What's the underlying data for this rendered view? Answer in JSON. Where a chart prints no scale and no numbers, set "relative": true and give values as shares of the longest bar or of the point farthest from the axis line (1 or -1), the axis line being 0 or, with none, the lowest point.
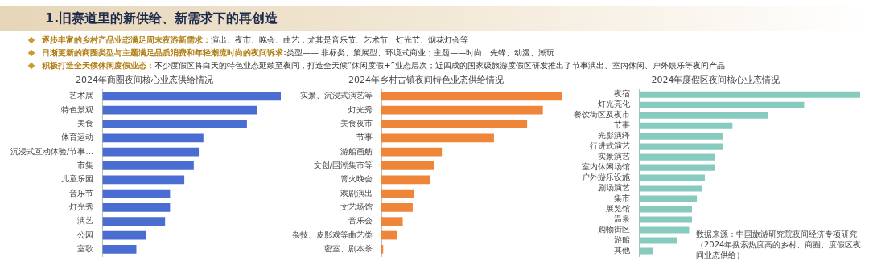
{
  "chart_data": [
    {
      "type": "other",
      "title": "1.旧赛道里的新供给、新需求下的再创造",
      "annotations": [
        "逐步丰富的乡村产品业态满足周末夜游新需求：",
        "演出、夜市、晚会、曲艺，尤其是音乐节、艺术节、灯光节、烟花灯会等",
        "日渐更新的商圈类型与主题满足品质消费和年轻潮流时尚的夜间诉求:",
        "类型—— 非标类、策展型、环境式商业；主题——时尚、先锋、动漫、潮玩",
        "积极打造全天候休闲度假业态：",
        "不少度假区将白天的特色业态延续至夜间，打造全天候“休闲度假+”业态层次；近四成的国家级旅游度假区研发推出了节事演出、室内休闲、户外娱乐等夜间产品"
      ]
    },
    {
      "type": "bar",
      "orientation": "horizontal",
      "relative": true,
      "title": "2024年商圈夜间核心业态供给情况",
      "color": "#4a6dd2",
      "categories": [
        "艺术展",
        "特色景观",
        "美食",
        "体育运动",
        "沉浸式互动体验/节事…",
        "市集",
        "儿童乐园",
        "音乐节",
        "灯光秀",
        "演艺",
        "公园",
        "室歌"
      ],
      "values": [
        1,
        0.865,
        0.81,
        0.566,
        0.54,
        0.512,
        0.459,
        0.379,
        0.379,
        0.351,
        0.244,
        0.19
      ]
    },
    {
      "type": "bar",
      "orientation": "horizontal",
      "relative": true,
      "title": "2024年乡村古镇夜间特色业态供给情况",
      "color": "#ef8539",
      "categories": [
        "实景、沉浸式演艺等",
        "灯光秀",
        "美食夜市",
        "节事",
        "游船画舫",
        "文创/国潮集市等",
        "篝火晚会",
        "戏剧演出",
        "文艺场馆",
        "音乐会",
        "杂技、皮影戏等曲艺类",
        "密室、剧本杀"
      ],
      "values": [
        1,
        0.892,
        0.805,
        0.622,
        0.334,
        0.29,
        0.267,
        0.182,
        0.173,
        0.118,
        0.085,
        0.01
      ]
    },
    {
      "type": "bar",
      "orientation": "horizontal",
      "relative": true,
      "title": "2024年度假区夜间核心业态情况",
      "color": "#86cbbd",
      "categories": [
        "夜宿",
        "灯光亮化",
        "餐饮街区及夜市",
        "节事",
        "光影演绎",
        "行进式演艺",
        "实景演艺",
        "室内休闲场馆",
        "户外游乐设施",
        "剧场演艺",
        "集市",
        "展览馆",
        "温泉",
        "购物街区",
        "游船",
        "其他"
      ],
      "values": [
        1,
        0.747,
        0.585,
        0.423,
        0.378,
        0.378,
        0.343,
        0.343,
        0.298,
        0.284,
        0.262,
        0.24,
        0.24,
        0.227,
        0.171,
        0.065
      ],
      "annotations": [
        "数据来源：中国旅游研究院夜间经济专项研究",
        "（2024年搜索热度高的乡村、商圈、度假区夜间业态供给）"
      ]
    }
  ]
}
